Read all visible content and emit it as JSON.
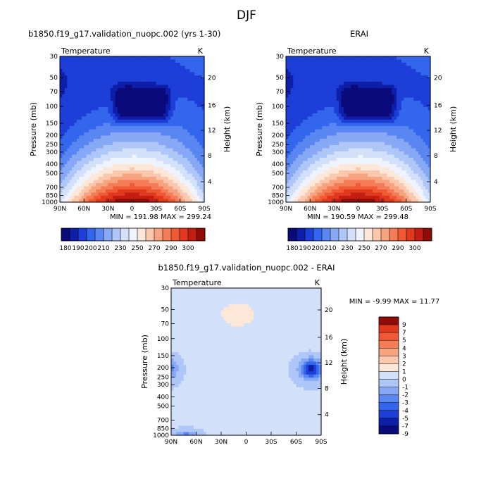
{
  "figure_title": "DJF",
  "colormap": [
    "#0a0a7a",
    "#0f1ea8",
    "#1d3fd8",
    "#3366ec",
    "#5a86f2",
    "#86a8f5",
    "#afc6f8",
    "#d2e0fa",
    "#eef3fd",
    "#fde7d8",
    "#fbc8ad",
    "#f8a37f",
    "#f47d57",
    "#ef5a35",
    "#e0391e",
    "#c21f12",
    "#8f0c07"
  ],
  "chart_data": [
    {
      "type": "heatmap",
      "id": "model",
      "title_left": "b1850.f19_g17.validation_nuopc.002 (yrs 1-30)",
      "variable": "Temperature",
      "units": "K",
      "ylabel": "Pressure (mb)",
      "ylabel_right": "Height (km)",
      "x_ticks": [
        "90N",
        "60N",
        "30N",
        "0",
        "30S",
        "60S",
        "90S"
      ],
      "y_ticks": [
        "30",
        "50",
        "70",
        "100",
        "150",
        "200",
        "250",
        "300",
        "400",
        "500",
        "700",
        "850",
        "1000"
      ],
      "height_ticks": [
        "20",
        "16",
        "12",
        "8",
        "4"
      ],
      "ylim": [
        1000,
        30
      ],
      "y_scale": "log",
      "xlim": [
        90,
        -90
      ],
      "stats": "MIN = 191.98   MAX = 299.24",
      "colorbar": {
        "orientation": "horizontal",
        "labels": [
          "180",
          "190",
          "200",
          "210",
          "230",
          "250",
          "270",
          "290",
          "300"
        ]
      }
    },
    {
      "type": "heatmap",
      "id": "obs",
      "title_center": "ERAI",
      "variable": "Temperature",
      "units": "K",
      "ylabel": "Pressure (mb)",
      "ylabel_right": "Height (km)",
      "x_ticks": [
        "90N",
        "60N",
        "30N",
        "0",
        "30S",
        "60S",
        "90S"
      ],
      "y_ticks": [
        "30",
        "50",
        "70",
        "100",
        "150",
        "200",
        "250",
        "300",
        "400",
        "500",
        "700",
        "850",
        "1000"
      ],
      "height_ticks": [
        "20",
        "16",
        "12",
        "8",
        "4"
      ],
      "ylim": [
        1000,
        30
      ],
      "y_scale": "log",
      "xlim": [
        90,
        -90
      ],
      "stats": "MIN = 190.59   MAX = 299.48",
      "colorbar": {
        "orientation": "horizontal",
        "labels": [
          "180",
          "190",
          "200",
          "210",
          "230",
          "250",
          "270",
          "290",
          "300"
        ]
      }
    },
    {
      "type": "heatmap",
      "id": "diff",
      "title_center": "b1850.f19_g17.validation_nuopc.002 - ERAI",
      "variable": "Temperature",
      "units": "K",
      "ylabel": "Pressure (mb)",
      "ylabel_right": "Height (km)",
      "x_ticks": [
        "90N",
        "60N",
        "30N",
        "0",
        "30S",
        "60S",
        "90S"
      ],
      "y_ticks": [
        "30",
        "50",
        "70",
        "100",
        "150",
        "200",
        "250",
        "300",
        "400",
        "500",
        "700",
        "850",
        "1000"
      ],
      "height_ticks": [
        "20",
        "16",
        "12",
        "8",
        "4"
      ],
      "ylim": [
        1000,
        30
      ],
      "y_scale": "log",
      "xlim": [
        90,
        -90
      ],
      "stats": "MIN =  -9.99  MAX =  11.77",
      "colorbar": {
        "orientation": "vertical",
        "labels": [
          "9",
          "7",
          "5",
          "4",
          "3",
          "2",
          "1",
          "0",
          "-1",
          "-2",
          "-3",
          "-4",
          "-5",
          "-7",
          "-9"
        ]
      }
    }
  ]
}
